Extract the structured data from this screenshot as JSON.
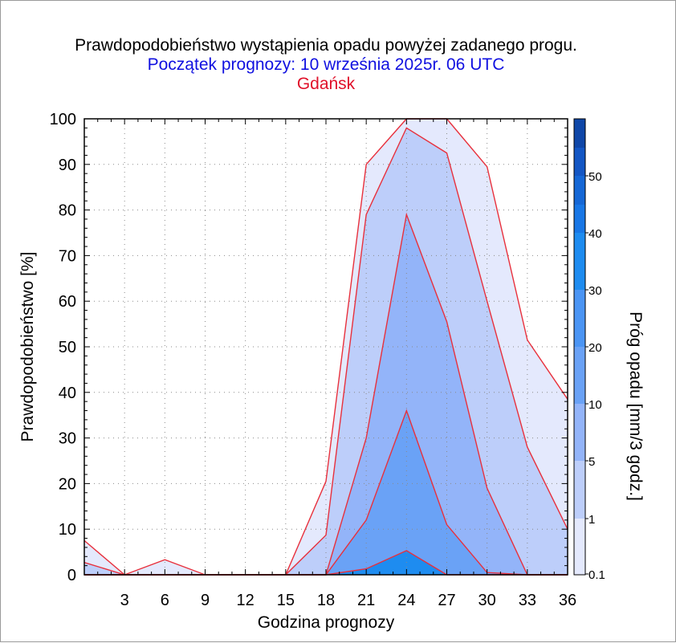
{
  "header": {
    "title": "Prawdopodobieństwo wystąpienia opadu powyżej zadanego progu.",
    "subtitle": "Początek prognozy: 10 września 2025r. 06 UTC",
    "location": "Gdańsk"
  },
  "colors": {
    "title": "#000000",
    "subtitle": "#1010e0",
    "location": "#e0102a",
    "outline": "#e8303c"
  },
  "chart_data": {
    "type": "area",
    "title": "Prawdopodobieństwo wystąpienia opadu powyżej zadanego progu.",
    "xlabel": "Godzina prognozy",
    "ylabel": "Prawdopodobieństwo [%]",
    "colorbar_label": "Próg opadu [mm/3 godz.]",
    "xlim": [
      0,
      36
    ],
    "ylim": [
      0,
      100
    ],
    "x_ticks": [
      3,
      6,
      9,
      12,
      15,
      18,
      21,
      24,
      27,
      30,
      33,
      36
    ],
    "y_ticks": [
      0,
      10,
      20,
      30,
      40,
      50,
      60,
      70,
      80,
      90,
      100
    ],
    "grid": true,
    "x": [
      0,
      3,
      6,
      9,
      12,
      15,
      18,
      21,
      24,
      27,
      30,
      33,
      36
    ],
    "series": [
      {
        "name": "0.1",
        "color": "#e4e9fd",
        "values": [
          7.5,
          0,
          3.3,
          0,
          0,
          0,
          20.5,
          90,
          100,
          100,
          89.5,
          51.5,
          38.5
        ]
      },
      {
        "name": "1",
        "color": "#bdcefa",
        "values": [
          2.7,
          0,
          0,
          0,
          0,
          0,
          8.7,
          79,
          98,
          92.5,
          60,
          28,
          10
        ]
      },
      {
        "name": "5",
        "color": "#93b4f9",
        "values": [
          0,
          0,
          0,
          0,
          0,
          0,
          0,
          30,
          79,
          55.5,
          19,
          0,
          0
        ]
      },
      {
        "name": "10",
        "color": "#6aa2f6",
        "values": [
          0,
          0,
          0,
          0,
          0,
          0,
          0,
          12,
          36,
          11,
          0.5,
          0,
          0
        ]
      },
      {
        "name": "20",
        "color": "#1e8cf0",
        "values": [
          0,
          0,
          0,
          0,
          0,
          0,
          0,
          1.3,
          5.3,
          0,
          0,
          0,
          0
        ]
      }
    ],
    "colorbar": {
      "ticks": [
        "0.1",
        "1",
        "5",
        "10",
        "20",
        "30",
        "40",
        "50"
      ],
      "colors": [
        "#e4e9fd",
        "#bdcefa",
        "#93b4f9",
        "#6aa2f6",
        "#4b95f4",
        "#1e8cf0",
        "#1877e6",
        "#1567d6",
        "#1356c4",
        "#0f47a8"
      ]
    }
  }
}
